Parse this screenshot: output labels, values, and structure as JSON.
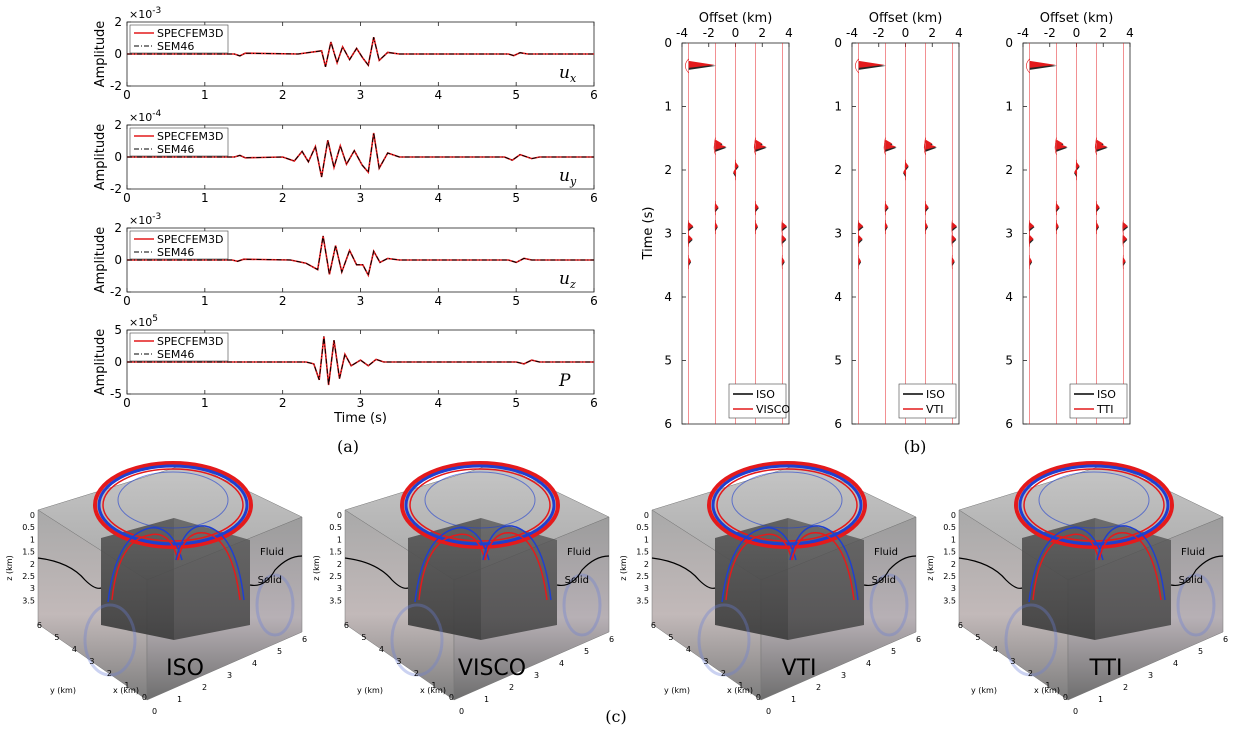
{
  "panel_labels": {
    "a": "(a)",
    "b": "(b)",
    "c": "(c)"
  },
  "colors": {
    "red": "#e41a1c",
    "black": "#000000",
    "blue": "#1f3fd0",
    "face": "#9a9a9a",
    "dark_face": "#4a4a4a"
  },
  "chart_data": [
    {
      "type": "line",
      "panel": "a",
      "component": "u_x",
      "xlabel": "",
      "ylabel": "Amplitude",
      "exponent": "×10",
      "exponent_power": "-3",
      "xlim": [
        0,
        6
      ],
      "ylim": [
        -2,
        2
      ],
      "xticks": [
        "0",
        "1",
        "2",
        "3",
        "4",
        "5",
        "6"
      ],
      "yticks": [
        "2",
        "0",
        "-2"
      ],
      "series": [
        {
          "name": "SPECFEM3D",
          "color": "#e41a1c"
        },
        {
          "name": "SEM46",
          "color": "#000000",
          "style": "dashdot"
        }
      ],
      "waveform": [
        [
          0,
          0
        ],
        [
          1.38,
          0
        ],
        [
          1.45,
          -0.12
        ],
        [
          1.52,
          0.05
        ],
        [
          2.2,
          0
        ],
        [
          2.5,
          0.2
        ],
        [
          2.55,
          -0.8
        ],
        [
          2.62,
          0.75
        ],
        [
          2.7,
          -0.55
        ],
        [
          2.77,
          0.45
        ],
        [
          2.86,
          -0.35
        ],
        [
          2.95,
          0.35
        ],
        [
          3.03,
          -0.25
        ],
        [
          3.1,
          -0.7
        ],
        [
          3.17,
          1.05
        ],
        [
          3.24,
          -0.4
        ],
        [
          3.35,
          0.1
        ],
        [
          3.5,
          0
        ],
        [
          4.9,
          0
        ],
        [
          4.97,
          -0.1
        ],
        [
          5.05,
          0.08
        ],
        [
          5.15,
          0
        ],
        [
          6,
          0
        ]
      ]
    },
    {
      "type": "line",
      "panel": "a",
      "component": "u_y",
      "xlabel": "",
      "ylabel": "Amplitude",
      "exponent": "×10",
      "exponent_power": "-4",
      "xlim": [
        0,
        6
      ],
      "ylim": [
        -2,
        2
      ],
      "xticks": [
        "0",
        "1",
        "2",
        "3",
        "4",
        "5",
        "6"
      ],
      "yticks": [
        "2",
        "0",
        "-2"
      ],
      "series": [
        {
          "name": "SPECFEM3D",
          "color": "#e41a1c"
        },
        {
          "name": "SEM46",
          "color": "#000000",
          "style": "dashdot"
        }
      ],
      "waveform": [
        [
          0,
          0
        ],
        [
          1.38,
          0
        ],
        [
          1.45,
          0.1
        ],
        [
          1.52,
          -0.05
        ],
        [
          2.0,
          0
        ],
        [
          2.15,
          -0.25
        ],
        [
          2.25,
          0.35
        ],
        [
          2.33,
          -0.3
        ],
        [
          2.42,
          0.65
        ],
        [
          2.5,
          -1.25
        ],
        [
          2.58,
          1.05
        ],
        [
          2.66,
          -0.65
        ],
        [
          2.74,
          0.7
        ],
        [
          2.82,
          -0.45
        ],
        [
          2.92,
          0.4
        ],
        [
          3.02,
          -0.5
        ],
        [
          3.1,
          -0.95
        ],
        [
          3.17,
          1.5
        ],
        [
          3.24,
          -0.7
        ],
        [
          3.35,
          0.25
        ],
        [
          3.5,
          0
        ],
        [
          4.85,
          0
        ],
        [
          4.95,
          -0.2
        ],
        [
          5.05,
          0.15
        ],
        [
          5.2,
          -0.1
        ],
        [
          5.3,
          0
        ],
        [
          6,
          0
        ]
      ]
    },
    {
      "type": "line",
      "panel": "a",
      "component": "u_z",
      "xlabel": "",
      "ylabel": "Amplitude",
      "exponent": "×10",
      "exponent_power": "-3",
      "xlim": [
        0,
        6
      ],
      "ylim": [
        -2,
        2
      ],
      "xticks": [
        "0",
        "1",
        "2",
        "3",
        "4",
        "5",
        "6"
      ],
      "yticks": [
        "2",
        "0",
        "-2"
      ],
      "series": [
        {
          "name": "SPECFEM3D",
          "color": "#e41a1c"
        },
        {
          "name": "SEM46",
          "color": "#000000",
          "style": "dashdot"
        }
      ],
      "waveform": [
        [
          0,
          0
        ],
        [
          1.35,
          0
        ],
        [
          1.42,
          -0.08
        ],
        [
          1.5,
          0.05
        ],
        [
          2.1,
          0
        ],
        [
          2.3,
          -0.2
        ],
        [
          2.45,
          -0.6
        ],
        [
          2.52,
          1.5
        ],
        [
          2.6,
          -0.9
        ],
        [
          2.68,
          0.9
        ],
        [
          2.76,
          -0.75
        ],
        [
          2.86,
          0.6
        ],
        [
          2.95,
          -0.3
        ],
        [
          3.03,
          -0.3
        ],
        [
          3.1,
          -0.95
        ],
        [
          3.17,
          0.55
        ],
        [
          3.25,
          -0.15
        ],
        [
          3.35,
          0.1
        ],
        [
          3.5,
          0
        ],
        [
          4.9,
          0
        ],
        [
          5.0,
          -0.15
        ],
        [
          5.1,
          0.1
        ],
        [
          5.2,
          0
        ],
        [
          6,
          0
        ]
      ]
    },
    {
      "type": "line",
      "panel": "a",
      "component": "P",
      "xlabel": "Time (s)",
      "ylabel": "Amplitude",
      "exponent": "×10",
      "exponent_power": "5",
      "xlim": [
        0,
        6
      ],
      "ylim": [
        -5,
        5
      ],
      "xticks": [
        "0",
        "1",
        "2",
        "3",
        "4",
        "5",
        "6"
      ],
      "yticks": [
        "5",
        "0",
        "-5"
      ],
      "series": [
        {
          "name": "SPECFEM3D",
          "color": "#e41a1c"
        },
        {
          "name": "SEM46",
          "color": "#000000",
          "style": "dashdot"
        }
      ],
      "waveform": [
        [
          0,
          0
        ],
        [
          2.3,
          0
        ],
        [
          2.4,
          -0.3
        ],
        [
          2.47,
          -2.8
        ],
        [
          2.53,
          4.0
        ],
        [
          2.59,
          -3.6
        ],
        [
          2.66,
          3.4
        ],
        [
          2.73,
          -2.6
        ],
        [
          2.8,
          1.2
        ],
        [
          2.88,
          -0.6
        ],
        [
          3.0,
          0.3
        ],
        [
          3.1,
          -0.6
        ],
        [
          3.2,
          0.4
        ],
        [
          3.3,
          0
        ],
        [
          5.0,
          0
        ],
        [
          5.1,
          -0.3
        ],
        [
          5.2,
          0.3
        ],
        [
          5.3,
          0
        ],
        [
          6,
          0
        ]
      ]
    },
    {
      "type": "line",
      "panel": "b",
      "subtype": "wiggle",
      "xlabel": "Offset (km)",
      "ylabel": "Time (s)",
      "xlim": [
        -4,
        4
      ],
      "ylim": [
        0,
        6
      ],
      "xticks": [
        "-4",
        "-2",
        "0",
        "2",
        "4"
      ],
      "yticks": [
        "0",
        "1",
        "2",
        "3",
        "4",
        "5",
        "6"
      ],
      "series": [
        {
          "name": "ISO",
          "color": "#000000"
        },
        {
          "name": "VISCO",
          "color": "#e41a1c"
        }
      ],
      "traces": [
        -3.5,
        -1.5,
        0,
        1.5,
        3.5
      ],
      "events": [
        [
          0,
          0.36,
          3.4
        ],
        [
          1,
          1.6,
          0.9
        ],
        [
          3,
          1.6,
          0.9
        ],
        [
          1,
          1.65,
          1.4
        ],
        [
          3,
          1.65,
          1.4
        ],
        [
          2,
          1.95,
          0.4
        ],
        [
          2,
          2.05,
          -0.3
        ],
        [
          1,
          2.6,
          0.4
        ],
        [
          3,
          2.6,
          0.4
        ],
        [
          0,
          2.9,
          0.6
        ],
        [
          4,
          2.9,
          0.6
        ],
        [
          0,
          3.1,
          0.5
        ],
        [
          4,
          3.1,
          0.5
        ],
        [
          1,
          2.9,
          0.3
        ],
        [
          3,
          2.9,
          0.3
        ],
        [
          0,
          3.45,
          0.3
        ],
        [
          4,
          3.45,
          0.3
        ]
      ]
    },
    {
      "type": "line",
      "panel": "b",
      "subtype": "wiggle",
      "xlabel": "Offset (km)",
      "ylabel": "",
      "xlim": [
        -4,
        4
      ],
      "ylim": [
        0,
        6
      ],
      "xticks": [
        "-4",
        "-2",
        "0",
        "2",
        "4"
      ],
      "yticks": [
        "0",
        "1",
        "2",
        "3",
        "4",
        "5",
        "6"
      ],
      "series": [
        {
          "name": "ISO",
          "color": "#000000"
        },
        {
          "name": "VTI",
          "color": "#e41a1c"
        }
      ],
      "traces": [
        -3.5,
        -1.5,
        0,
        1.5,
        3.5
      ],
      "events": [
        [
          0,
          0.36,
          3.4
        ],
        [
          1,
          1.6,
          0.9
        ],
        [
          3,
          1.6,
          0.9
        ],
        [
          1,
          1.65,
          1.4
        ],
        [
          3,
          1.65,
          1.4
        ],
        [
          2,
          1.95,
          0.4
        ],
        [
          2,
          2.05,
          -0.3
        ],
        [
          1,
          2.6,
          0.4
        ],
        [
          3,
          2.6,
          0.4
        ],
        [
          0,
          2.9,
          0.6
        ],
        [
          4,
          2.9,
          0.6
        ],
        [
          0,
          3.1,
          0.5
        ],
        [
          4,
          3.1,
          0.5
        ],
        [
          1,
          2.9,
          0.3
        ],
        [
          3,
          2.9,
          0.3
        ],
        [
          0,
          3.45,
          0.3
        ],
        [
          4,
          3.45,
          0.3
        ]
      ]
    },
    {
      "type": "line",
      "panel": "b",
      "subtype": "wiggle",
      "xlabel": "Offset (km)",
      "ylabel": "",
      "xlim": [
        -4,
        4
      ],
      "ylim": [
        0,
        6
      ],
      "xticks": [
        "-4",
        "-2",
        "0",
        "2",
        "4"
      ],
      "yticks": [
        "0",
        "1",
        "2",
        "3",
        "4",
        "5",
        "6"
      ],
      "series": [
        {
          "name": "ISO",
          "color": "#000000"
        },
        {
          "name": "TTI",
          "color": "#e41a1c"
        }
      ],
      "traces": [
        -3.5,
        -1.5,
        0,
        1.5,
        3.5
      ],
      "events": [
        [
          0,
          0.36,
          3.4
        ],
        [
          1,
          1.6,
          0.9
        ],
        [
          3,
          1.6,
          0.9
        ],
        [
          1,
          1.65,
          1.4
        ],
        [
          3,
          1.65,
          1.4
        ],
        [
          2,
          1.95,
          0.4
        ],
        [
          2,
          2.05,
          -0.3
        ],
        [
          1,
          2.6,
          0.4
        ],
        [
          3,
          2.6,
          0.4
        ],
        [
          0,
          2.9,
          0.6
        ],
        [
          4,
          2.9,
          0.6
        ],
        [
          0,
          3.1,
          0.5
        ],
        [
          4,
          3.1,
          0.5
        ],
        [
          1,
          2.9,
          0.3
        ],
        [
          3,
          2.9,
          0.3
        ],
        [
          0,
          3.45,
          0.3
        ],
        [
          4,
          3.45,
          0.3
        ]
      ]
    }
  ],
  "cubes": [
    {
      "label": "ISO"
    },
    {
      "label": "VISCO"
    },
    {
      "label": "VTI"
    },
    {
      "label": "TTI"
    }
  ],
  "cube_axes": {
    "z_label": "z (km)",
    "z_ticks": [
      "0",
      "0.5",
      "1",
      "1.5",
      "2",
      "2.5",
      "3",
      "3.5"
    ],
    "y_label": "y (km)",
    "y_ticks": [
      "6",
      "5",
      "4",
      "3",
      "2",
      "1",
      "0"
    ],
    "x_label": "x (km)",
    "x_ticks": [
      "0",
      "1",
      "2",
      "3",
      "4",
      "5",
      "6"
    ],
    "fluid": "Fluid",
    "solid": "Solid"
  }
}
